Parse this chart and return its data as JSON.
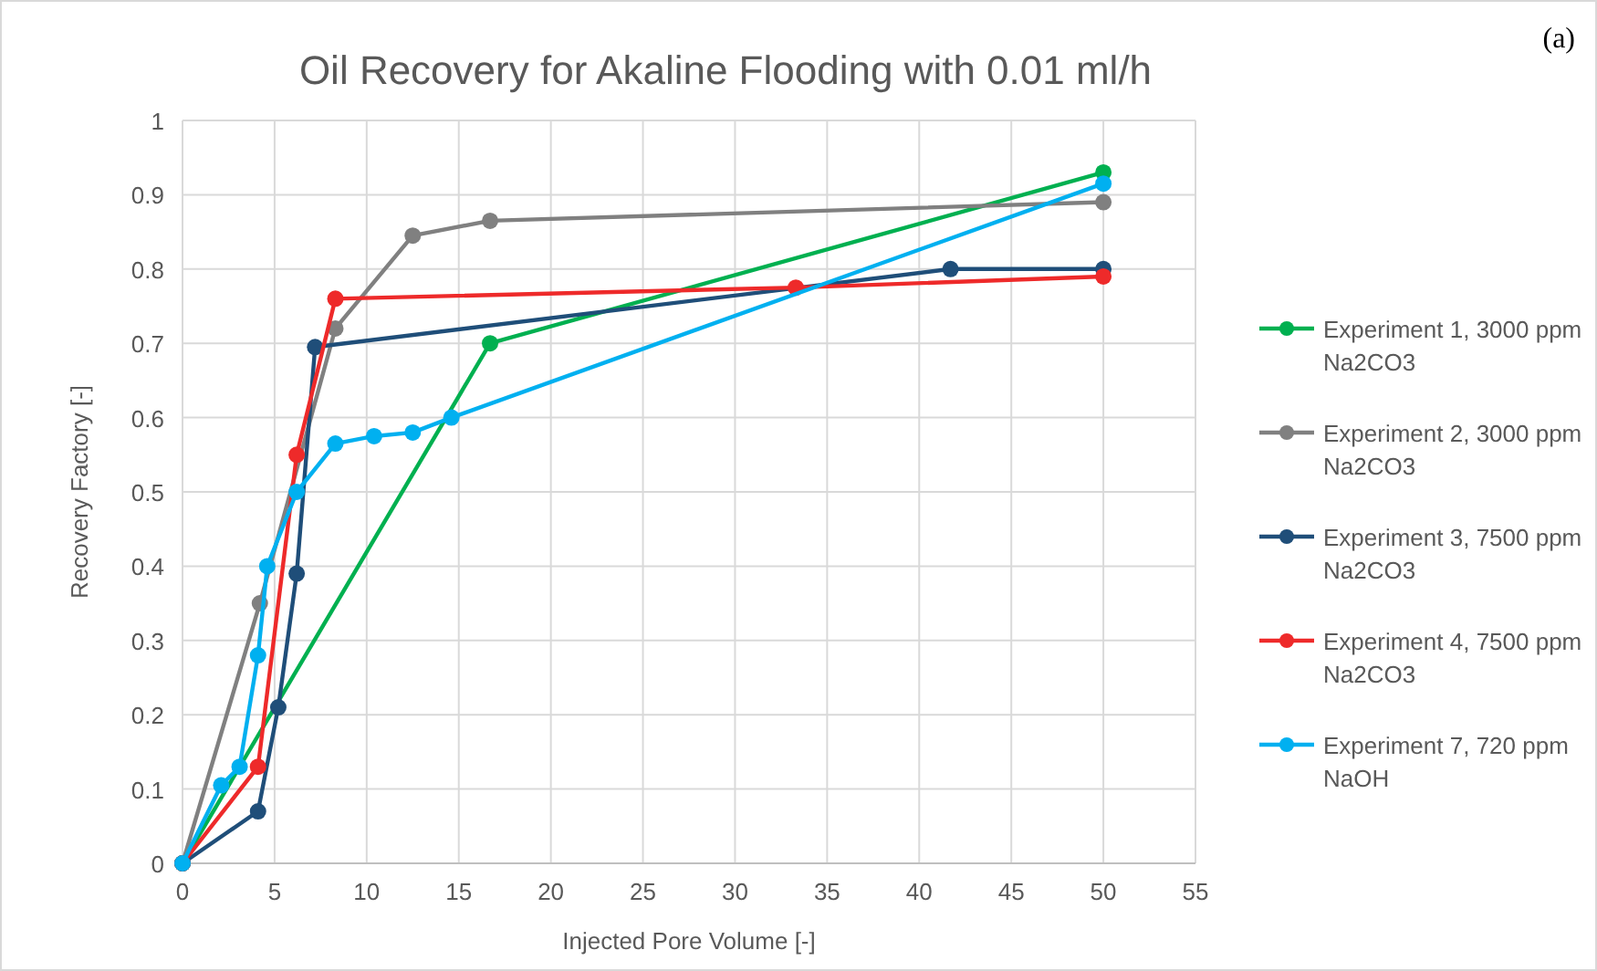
{
  "chart_data": {
    "type": "line",
    "title": "Oil Recovery for Akaline Flooding with 0.01 ml/h",
    "xlabel": "Injected Pore Volume [-]",
    "ylabel": "Recovery Factory [-]",
    "annotations": [
      "(a)"
    ],
    "xlim": [
      0,
      55
    ],
    "xticks": [
      0,
      5,
      10,
      15,
      20,
      25,
      30,
      35,
      40,
      45,
      50,
      55
    ],
    "ylim": [
      0,
      1
    ],
    "yticks": [
      0,
      0.1,
      0.2,
      0.3,
      0.4,
      0.5,
      0.6,
      0.7,
      0.8,
      0.9,
      1
    ],
    "grid": true,
    "legend": "right",
    "marker": "circle",
    "line_style": "solid",
    "series": [
      {
        "name": "Experiment 1, 3000 ppm Na2CO3",
        "color": "#00b050",
        "x": [
          0,
          16.7,
          50
        ],
        "values": [
          0,
          0.7,
          0.93
        ]
      },
      {
        "name": "Experiment 2, 3000 ppm Na2CO3",
        "color": "#808080",
        "x": [
          0,
          4.2,
          8.3,
          12.5,
          16.7,
          50
        ],
        "values": [
          0,
          0.35,
          0.72,
          0.845,
          0.865,
          0.89
        ]
      },
      {
        "name": "Experiment 3, 7500 ppm Na2CO3",
        "color": "#1f4e79",
        "x": [
          0,
          4.1,
          5.2,
          6.2,
          7.2,
          41.7,
          50
        ],
        "values": [
          0,
          0.07,
          0.21,
          0.39,
          0.695,
          0.8,
          0.8
        ]
      },
      {
        "name": "Experiment 4, 7500 ppm Na2CO3",
        "color": "#ee2a2a",
        "x": [
          0,
          4.1,
          6.2,
          8.3,
          33.3,
          50
        ],
        "values": [
          0,
          0.13,
          0.55,
          0.76,
          0.775,
          0.79
        ]
      },
      {
        "name": "Experiment 7, 720 ppm NaOH",
        "color": "#00b0f0",
        "x": [
          0,
          2.1,
          3.1,
          4.1,
          4.6,
          6.2,
          8.3,
          10.4,
          12.5,
          14.6,
          50
        ],
        "values": [
          0,
          0.105,
          0.13,
          0.28,
          0.4,
          0.5,
          0.565,
          0.575,
          0.58,
          0.6,
          0.915
        ]
      }
    ]
  }
}
